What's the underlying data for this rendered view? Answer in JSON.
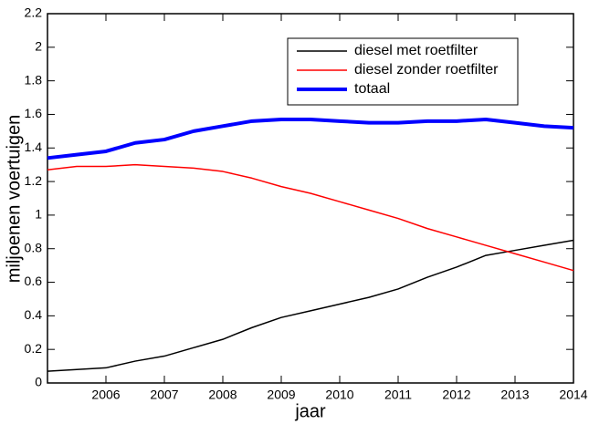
{
  "chart_data": {
    "type": "line",
    "xlabel": "jaar",
    "ylabel": "miljoenen voertuigen",
    "x": [
      2005,
      2005.5,
      2006,
      2006.5,
      2007,
      2007.5,
      2008,
      2008.5,
      2009,
      2009.5,
      2010,
      2010.5,
      2011,
      2011.5,
      2012,
      2012.5,
      2013,
      2013.5,
      2014
    ],
    "series": [
      {
        "name": "diesel met roetfilter",
        "color": "#000000",
        "width": 1.5,
        "values": [
          0.07,
          0.08,
          0.09,
          0.13,
          0.16,
          0.21,
          0.26,
          0.33,
          0.39,
          0.43,
          0.47,
          0.51,
          0.56,
          0.63,
          0.69,
          0.76,
          0.79,
          0.82,
          0.85
        ]
      },
      {
        "name": "diesel zonder roetfilter",
        "color": "#ff0000",
        "width": 1.5,
        "values": [
          1.27,
          1.29,
          1.29,
          1.3,
          1.29,
          1.28,
          1.26,
          1.22,
          1.17,
          1.13,
          1.08,
          1.03,
          0.98,
          0.92,
          0.87,
          0.82,
          0.77,
          0.72,
          0.67
        ]
      },
      {
        "name": "totaal",
        "color": "#0000ff",
        "width": 4,
        "values": [
          1.34,
          1.36,
          1.38,
          1.43,
          1.45,
          1.5,
          1.53,
          1.56,
          1.57,
          1.57,
          1.56,
          1.55,
          1.55,
          1.56,
          1.56,
          1.57,
          1.55,
          1.53,
          1.52
        ]
      }
    ],
    "xlim": [
      2005,
      2014
    ],
    "xticks": [
      2006,
      2007,
      2008,
      2009,
      2010,
      2011,
      2012,
      2013,
      2014
    ],
    "ylim": [
      0,
      2.2
    ],
    "yticks": [
      0,
      0.2,
      0.4,
      0.6,
      0.8,
      1,
      1.2,
      1.4,
      1.6,
      1.8,
      2,
      2.2
    ],
    "grid": false
  }
}
